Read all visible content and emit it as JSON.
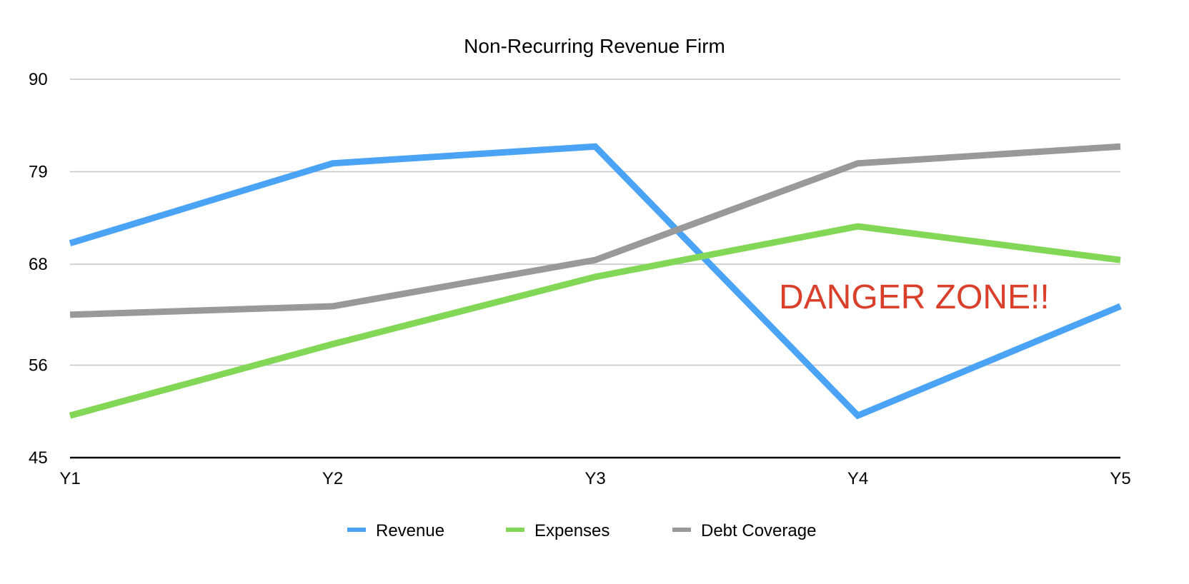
{
  "chart_data": {
    "type": "line",
    "title": "Non-Recurring Revenue Firm",
    "xlabel": "",
    "ylabel": "",
    "categories": [
      "Y1",
      "Y2",
      "Y3",
      "Y4",
      "Y5"
    ],
    "ylim": [
      45,
      90
    ],
    "yticks": [
      45,
      56,
      68,
      79,
      90
    ],
    "grid": true,
    "legend_position": "bottom",
    "series": [
      {
        "name": "Revenue",
        "color": "#4aa3f5",
        "values": [
          70.5,
          80.0,
          82.0,
          50.0,
          63.0
        ]
      },
      {
        "name": "Expenses",
        "color": "#83d756",
        "values": [
          50.0,
          58.5,
          66.5,
          72.5,
          68.5
        ]
      },
      {
        "name": "Debt Coverage",
        "color": "#999999",
        "values": [
          62.0,
          63.0,
          68.5,
          80.0,
          82.0
        ]
      }
    ],
    "annotations": [
      {
        "text": "DANGER ZONE!!",
        "color": "#d9402b"
      }
    ]
  }
}
